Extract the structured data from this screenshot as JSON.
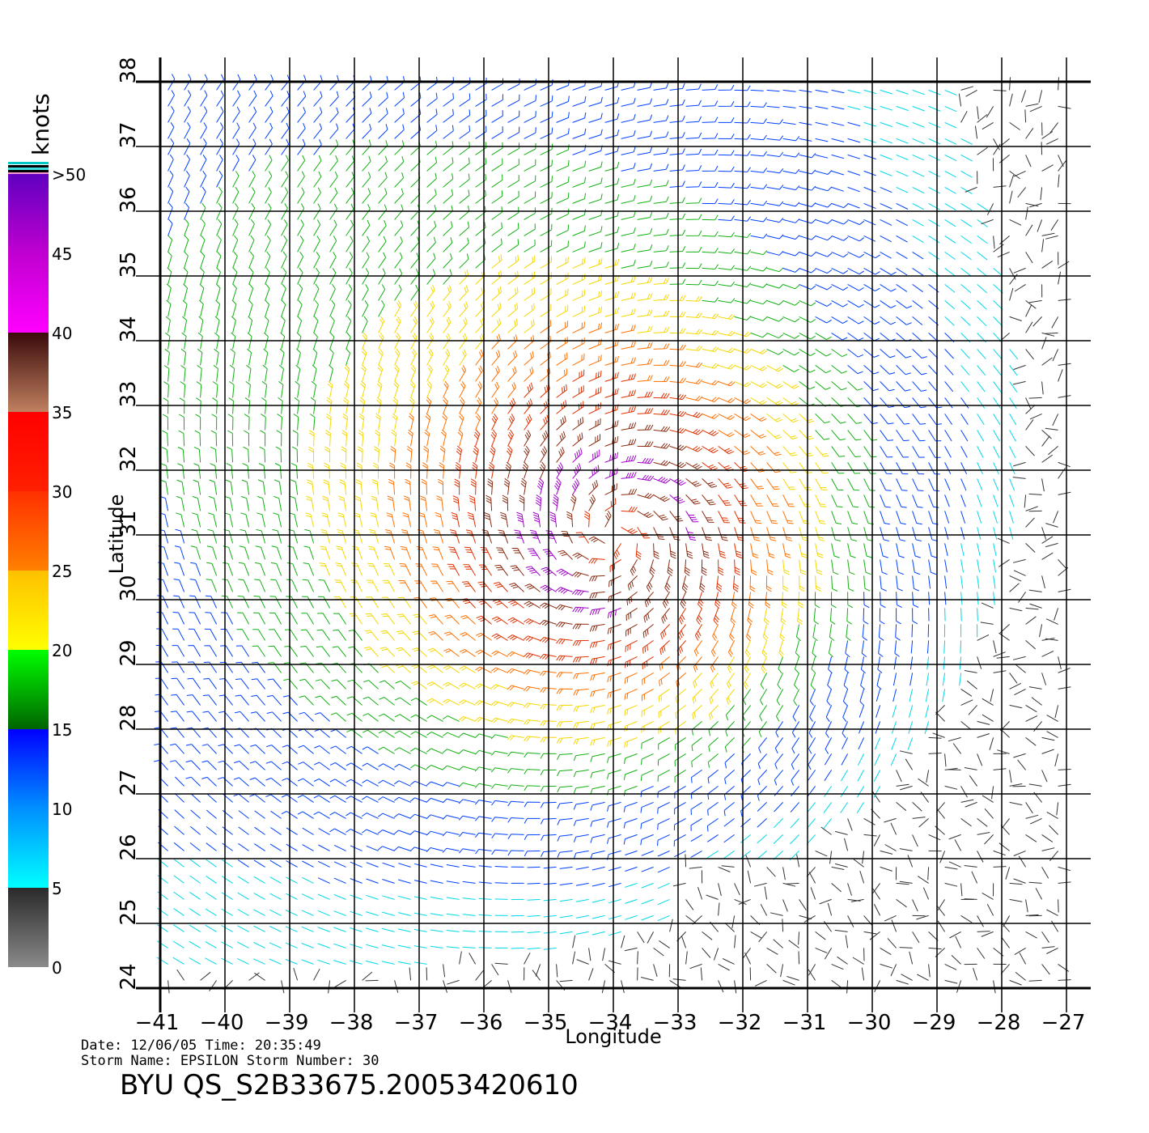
{
  "chart_data": {
    "type": "wind-barb",
    "xlabel": "Longitude",
    "ylabel": "Latitude",
    "xlim": [
      -41,
      -27
    ],
    "ylim": [
      24,
      38
    ],
    "x_ticks": [
      "-41",
      "-40",
      "-39",
      "-38",
      "-37",
      "-36",
      "-35",
      "-34",
      "-33",
      "-32",
      "-31",
      "-30",
      "-29",
      "-28",
      "-27"
    ],
    "y_ticks": [
      "24",
      "25",
      "26",
      "27",
      "28",
      "29",
      "30",
      "31",
      "32",
      "33",
      "34",
      "35",
      "36",
      "37",
      "38"
    ],
    "grid": true,
    "storm_center": {
      "lon": -34.0,
      "lat": 31.0
    },
    "colorbar": {
      "unit": "knots",
      "tick_labels": [
        "0",
        "5",
        "10",
        "15",
        "20",
        "25",
        "30",
        "35",
        "40",
        "45",
        ">50"
      ],
      "bands": [
        {
          "from": 0,
          "to": 5,
          "colors": [
            "#8a8a8a",
            "#2a2a2a"
          ]
        },
        {
          "from": 5,
          "to": 10,
          "colors": [
            "#00ffff",
            "#0090ff"
          ]
        },
        {
          "from": 10,
          "to": 15,
          "colors": [
            "#0090ff",
            "#0000ff"
          ]
        },
        {
          "from": 15,
          "to": 20,
          "colors": [
            "#006400",
            "#00ff00"
          ]
        },
        {
          "from": 20,
          "to": 25,
          "colors": [
            "#ffff00",
            "#ffc000"
          ]
        },
        {
          "from": 25,
          "to": 30,
          "colors": [
            "#ff8000",
            "#ff3000"
          ]
        },
        {
          "from": 30,
          "to": 35,
          "colors": [
            "#ff2000",
            "#ff0000"
          ]
        },
        {
          "from": 35,
          "to": 40,
          "colors": [
            "#c08060",
            "#3a0a0a"
          ]
        },
        {
          "from": 40,
          "to": 45,
          "colors": [
            "#ff00ff",
            "#c000d0"
          ]
        },
        {
          "from": 45,
          "to": 50,
          "colors": [
            "#c000d0",
            "#6000c0"
          ]
        }
      ]
    }
  },
  "footer": {
    "date_line": "Date: 12/06/05   Time: 20:35:49",
    "storm_line": "Storm  Name:  EPSILON    Storm  Number:  30",
    "file_id": "BYU  QS_S2B33675.20053420610"
  }
}
